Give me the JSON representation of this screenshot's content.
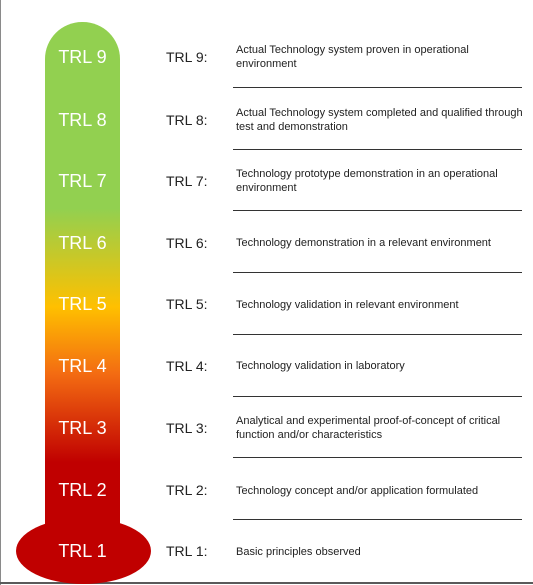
{
  "colors": {
    "green": "#92d050",
    "yellow": "#ffc000",
    "orange": "#f36b12",
    "red": "#c00000"
  },
  "levels": [
    {
      "bar_label": "TRL 9",
      "label": "TRL 9:",
      "description": "Actual Technology system proven in operational environment"
    },
    {
      "bar_label": "TRL 8",
      "label": "TRL 8:",
      "description": "Actual Technology system completed and qualified through test and demonstration"
    },
    {
      "bar_label": "TRL 7",
      "label": "TRL 7:",
      "description": "Technology prototype demonstration in an operational environment"
    },
    {
      "bar_label": "TRL 6",
      "label": "TRL 6:",
      "description": "Technology demonstration in a relevant environment"
    },
    {
      "bar_label": "TRL 5",
      "label": "TRL 5:",
      "description": "Technology validation in relevant environment"
    },
    {
      "bar_label": "TRL 4",
      "label": "TRL 4:",
      "description": "Technology validation in laboratory"
    },
    {
      "bar_label": "TRL 3",
      "label": "TRL 3:",
      "description": "Analytical and experimental proof-of-concept of critical function and/or characteristics"
    },
    {
      "bar_label": "TRL 2",
      "label": "TRL 2:",
      "description": "Technology concept and/or application formulated"
    },
    {
      "bar_label": "TRL 1",
      "label": "TRL 1:",
      "description": "Basic principles observed"
    }
  ]
}
